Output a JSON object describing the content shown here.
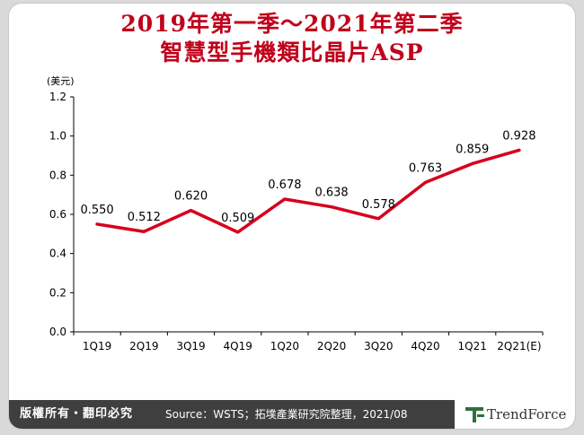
{
  "title_line1": "2019年第一季～2021年第二季",
  "title_line2": "智慧型手機類比晶片ASP",
  "footer": {
    "copyright": "版權所有・翻印必究",
    "source": "Source：WSTS；拓墣產業研究院整理，2021/08",
    "brand": "TrendForce"
  },
  "chart_data": {
    "type": "line",
    "ylabel": "(美元)",
    "ylim": [
      0,
      1.2
    ],
    "yticks": [
      "0.0",
      "0.2",
      "0.4",
      "0.6",
      "0.8",
      "1.0",
      "1.2"
    ],
    "categories": [
      "1Q19",
      "2Q19",
      "3Q19",
      "4Q19",
      "1Q20",
      "2Q20",
      "3Q20",
      "4Q20",
      "1Q21",
      "2Q21(E)"
    ],
    "values": [
      0.55,
      0.512,
      0.62,
      0.509,
      0.678,
      0.638,
      0.578,
      0.763,
      0.859,
      0.928
    ],
    "data_labels": [
      "0.550",
      "0.512",
      "0.620",
      "0.509",
      "0.678",
      "0.638",
      "0.578",
      "0.763",
      "0.859",
      "0.928"
    ],
    "line_color": "#d6001c",
    "grid": false
  }
}
